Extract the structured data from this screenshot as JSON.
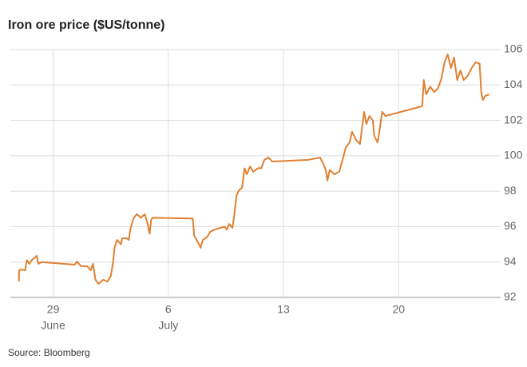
{
  "chart_data": {
    "type": "line",
    "title": "Iron ore price ($US/tonne)",
    "source": "Source: Bloomberg",
    "color": "#e08030",
    "grid": true,
    "xlim": [
      26.4,
      56.2
    ],
    "xticks": [
      {
        "value": 29,
        "label": "29"
      },
      {
        "value": 36,
        "label": "6"
      },
      {
        "value": 43,
        "label": "13"
      },
      {
        "value": 50,
        "label": "20"
      }
    ],
    "month_labels": [
      {
        "value": 29,
        "label": "June"
      },
      {
        "value": 36,
        "label": "July"
      }
    ],
    "ylim": [
      92,
      106
    ],
    "yticks": [
      92,
      94,
      96,
      98,
      100,
      102,
      104,
      106
    ],
    "x": [
      26.92,
      26.93,
      27.06,
      27.3,
      27.4,
      27.55,
      27.69,
      28.0,
      28.1,
      28.3,
      30.31,
      30.45,
      30.7,
      31.08,
      31.28,
      31.42,
      31.57,
      31.76,
      32.05,
      32.3,
      32.5,
      32.63,
      32.73,
      32.88,
      33.12,
      33.2,
      33.46,
      33.6,
      33.7,
      33.9,
      34.09,
      34.33,
      34.57,
      34.72,
      34.86,
      34.96,
      35.06,
      37.48,
      37.58,
      37.72,
      37.87,
      37.96,
      38.1,
      38.35,
      38.54,
      38.83,
      39.17,
      39.42,
      39.56,
      39.7,
      39.9,
      40.0,
      40.14,
      40.29,
      40.48,
      40.63,
      40.77,
      40.97,
      41.16,
      41.45,
      41.65,
      41.84,
      42.08,
      42.32,
      44.5,
      45.23,
      45.42,
      45.57,
      45.67,
      45.81,
      46.1,
      46.39,
      46.59,
      46.78,
      47.02,
      47.17,
      47.41,
      47.65,
      47.9,
      48.04,
      48.23,
      48.43,
      48.52,
      48.72,
      48.86,
      49.0,
      49.2,
      51.43,
      51.53,
      51.67,
      51.92,
      52.16,
      52.4,
      52.6,
      52.79,
      52.98,
      53.18,
      53.37,
      53.56,
      53.76,
      53.95,
      54.19,
      54.44,
      54.68,
      54.92,
      55.02,
      55.12,
      55.26,
      55.5
    ],
    "values": [
      92.9,
      93.53,
      93.58,
      93.53,
      94.1,
      93.9,
      94.1,
      94.35,
      93.9,
      94.0,
      93.85,
      94.03,
      93.76,
      93.76,
      93.53,
      93.9,
      93.0,
      92.77,
      93.0,
      92.9,
      93.2,
      93.9,
      94.8,
      95.25,
      95.0,
      95.34,
      95.34,
      95.25,
      95.9,
      96.5,
      96.7,
      96.5,
      96.7,
      96.24,
      95.6,
      96.4,
      96.5,
      96.46,
      95.48,
      95.25,
      95.0,
      94.8,
      95.25,
      95.4,
      95.7,
      95.84,
      95.93,
      96.0,
      95.84,
      96.15,
      95.93,
      96.6,
      97.73,
      98.05,
      98.19,
      99.3,
      98.95,
      99.4,
      99.1,
      99.3,
      99.3,
      99.77,
      99.9,
      99.68,
      99.77,
      99.9,
      99.54,
      99.2,
      98.6,
      99.2,
      98.95,
      99.1,
      99.77,
      100.45,
      100.76,
      101.35,
      100.9,
      100.67,
      102.48,
      101.8,
      102.25,
      102.0,
      101.12,
      100.76,
      101.57,
      102.48,
      102.25,
      102.8,
      104.28,
      103.47,
      103.9,
      103.6,
      103.83,
      104.37,
      105.28,
      105.73,
      104.96,
      105.55,
      104.28,
      104.82,
      104.28,
      104.5,
      104.96,
      105.28,
      105.2,
      103.6,
      103.15,
      103.38,
      103.47
    ]
  }
}
